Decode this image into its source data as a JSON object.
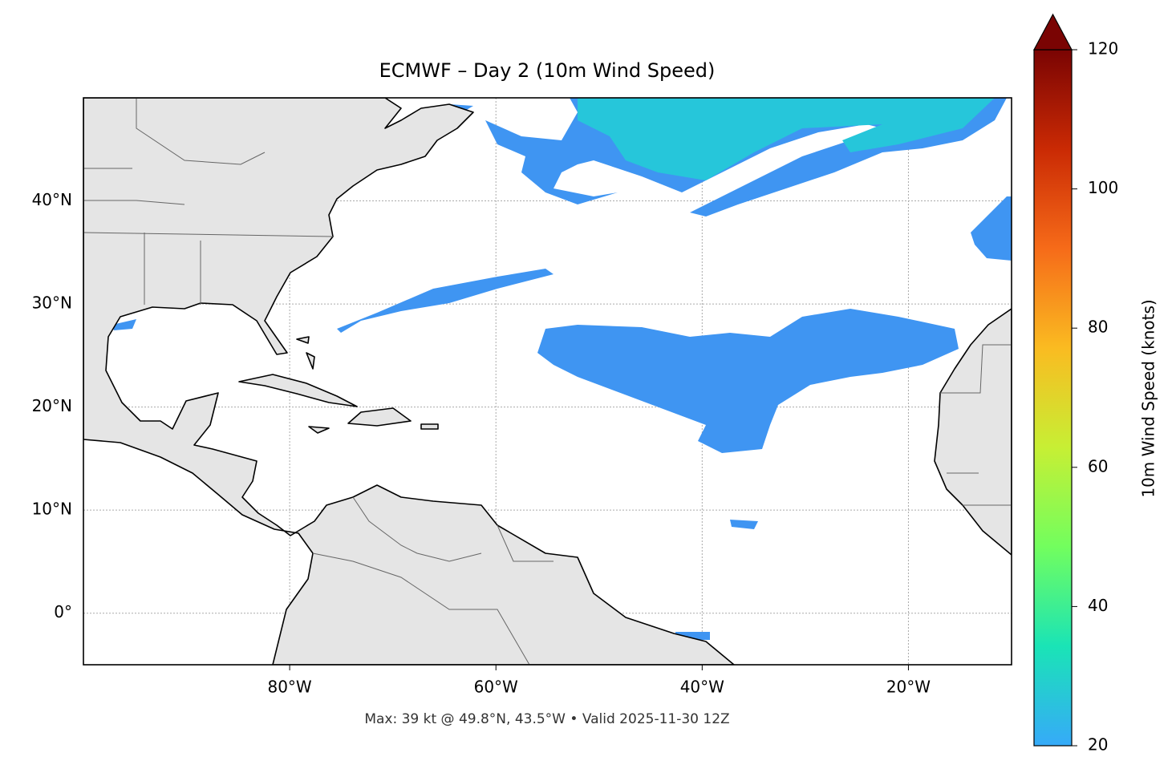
{
  "chart_data": {
    "type": "map",
    "title": "ECMWF – Day 2 (10m Wind Speed)",
    "note": "Max: 39 kt @ 49.8°N, 43.5°W • Valid 2025-11-30 12Z",
    "xlim": [
      -100,
      -10
    ],
    "ylim": [
      -5,
      50
    ],
    "xticks": [
      {
        "value": -80,
        "label": "80°W"
      },
      {
        "value": -60,
        "label": "60°W"
      },
      {
        "value": -40,
        "label": "40°W"
      },
      {
        "value": -20,
        "label": "20°W"
      }
    ],
    "yticks": [
      {
        "value": 0,
        "label": "0°"
      },
      {
        "value": 10,
        "label": "10°N"
      },
      {
        "value": 20,
        "label": "20°N"
      },
      {
        "value": 30,
        "label": "30°N"
      },
      {
        "value": 40,
        "label": "40°N"
      }
    ],
    "grid": true,
    "colorbar": {
      "label": "10m Wind Speed (knots)",
      "lim": [
        20,
        120
      ],
      "ticks": [
        20,
        40,
        60,
        80,
        100,
        120
      ],
      "colormap": "turbo",
      "extend": "max"
    }
  }
}
